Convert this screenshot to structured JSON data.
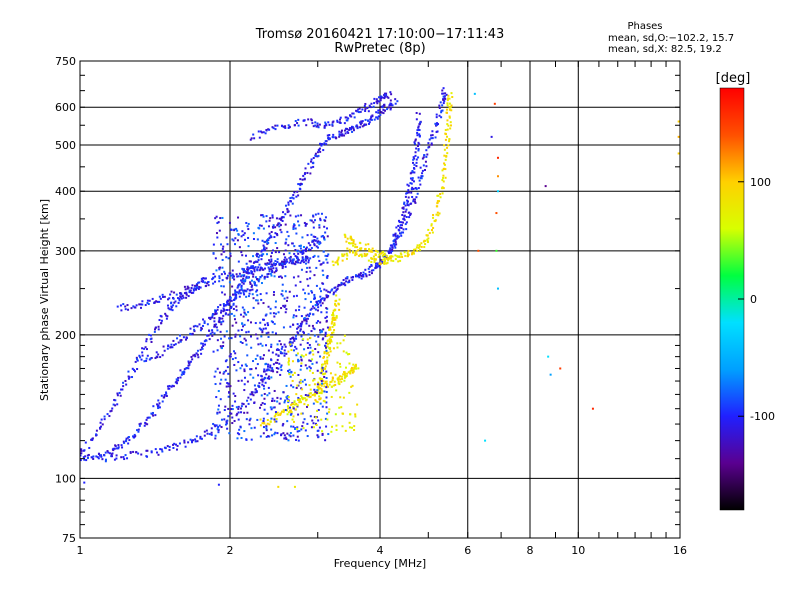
{
  "chart_data": {
    "type": "scatter",
    "title": "Tromsø 20160421 17:10:00−17:11:43",
    "subtitle": "RwPretec (8p)",
    "xlabel": "Frequency [MHz]",
    "ylabel": "Stationary phase Virtual Height [km]",
    "x_scale": "log",
    "y_scale": "log",
    "xlim": [
      1,
      16
    ],
    "ylim": [
      75,
      750
    ],
    "x_ticks": [
      1,
      2,
      4,
      6,
      8,
      10,
      16
    ],
    "y_ticks": [
      75,
      100,
      200,
      300,
      400,
      500,
      600,
      750
    ],
    "grid": true,
    "colorbar": {
      "label": "[deg]",
      "range": [
        -180,
        180
      ],
      "ticks": [
        100,
        0,
        -100
      ],
      "colors": [
        "#000000",
        "#5a0090",
        "#2020ff",
        "#00a0ff",
        "#00e0ff",
        "#00ff40",
        "#d8ff00",
        "#ffd000",
        "#ff5000",
        "#ff0000"
      ]
    },
    "stats": {
      "title": "Phases",
      "o_line": "mean, sd,O:−102.2, 15.7",
      "x_line": "mean, sd,X:  82.5, 19.2"
    },
    "series": [
      {
        "traces": [
          [
            [
              1.0,
              110
            ],
            [
              1.1,
              112
            ],
            [
              1.2,
              116
            ],
            [
              1.3,
              125
            ],
            [
              1.4,
              138
            ],
            [
              1.5,
              152
            ],
            [
              1.6,
              166
            ],
            [
              1.7,
              180
            ],
            [
              1.8,
              196
            ],
            [
              1.9,
              213
            ],
            [
              2.0,
              232
            ],
            [
              2.1,
              252
            ],
            [
              2.2,
              276
            ],
            [
              2.35,
              306
            ],
            [
              2.5,
              340
            ],
            [
              2.65,
              378
            ],
            [
              2.8,
              420
            ],
            [
              2.95,
              468
            ],
            [
              3.1,
              510
            ],
            [
              3.3,
              525
            ],
            [
              3.5,
              538
            ],
            [
              3.7,
              552
            ],
            [
              3.9,
              575
            ],
            [
              4.1,
              598
            ],
            [
              4.3,
              618
            ]
          ],
          [
            [
              1.1,
              110
            ],
            [
              1.3,
              112
            ],
            [
              1.5,
              115
            ],
            [
              1.7,
              120
            ],
            [
              1.9,
              128
            ],
            [
              2.1,
              140
            ],
            [
              2.3,
              158
            ],
            [
              2.5,
              178
            ],
            [
              2.7,
              200
            ],
            [
              2.9,
              222
            ],
            [
              3.1,
              240
            ],
            [
              3.3,
              254
            ],
            [
              3.5,
              262
            ],
            [
              3.7,
              268
            ],
            [
              3.9,
              276
            ],
            [
              4.1,
              290
            ],
            [
              4.3,
              310
            ],
            [
              4.5,
              345
            ],
            [
              4.7,
              395
            ],
            [
              4.9,
              450
            ],
            [
              5.1,
              520
            ],
            [
              5.3,
              600
            ],
            [
              5.4,
              650
            ]
          ],
          [
            [
              1.0,
              112
            ],
            [
              1.1,
              128
            ],
            [
              1.2,
              150
            ],
            [
              1.3,
              175
            ],
            [
              1.4,
              200
            ],
            [
              1.5,
              225
            ],
            [
              1.6,
              240
            ],
            [
              1.7,
              252
            ],
            [
              1.8,
              262
            ]
          ],
          [
            [
              1.2,
              228
            ],
            [
              1.35,
              232
            ],
            [
              1.5,
              240
            ],
            [
              1.7,
              252
            ],
            [
              1.9,
              262
            ],
            [
              2.1,
              270
            ],
            [
              2.3,
              276
            ],
            [
              2.5,
              282
            ],
            [
              2.7,
              286
            ],
            [
              2.9,
              290
            ]
          ],
          [
            [
              1.35,
              175
            ],
            [
              1.5,
              188
            ],
            [
              1.65,
              200
            ],
            [
              1.8,
              214
            ],
            [
              1.95,
              230
            ],
            [
              2.1,
              246
            ],
            [
              2.3,
              262
            ],
            [
              2.5,
              278
            ],
            [
              2.7,
              294
            ],
            [
              2.9,
              308
            ],
            [
              3.1,
              324
            ]
          ],
          [
            [
              2.2,
              520
            ],
            [
              2.5,
              545
            ],
            [
              2.8,
              560
            ],
            [
              3.1,
              552
            ],
            [
              3.4,
              565
            ],
            [
              3.7,
              590
            ],
            [
              4.0,
              625
            ],
            [
              4.2,
              640
            ]
          ],
          [
            [
              4.2,
              300
            ],
            [
              4.35,
              330
            ],
            [
              4.5,
              370
            ],
            [
              4.6,
              410
            ],
            [
              4.7,
              460
            ],
            [
              4.75,
              520
            ],
            [
              4.8,
              580
            ]
          ]
        ],
        "phase_deg": -105
      },
      {
        "traces": [
          [
            [
              2.3,
              130
            ],
            [
              2.5,
              135
            ],
            [
              2.7,
              142
            ],
            [
              2.9,
              150
            ],
            [
              3.1,
              156
            ],
            [
              3.3,
              162
            ],
            [
              3.5,
              168
            ],
            [
              3.6,
              172
            ]
          ],
          [
            [
              3.0,
              145
            ],
            [
              3.05,
              160
            ],
            [
              3.1,
              175
            ],
            [
              3.15,
              190
            ],
            [
              3.2,
              205
            ],
            [
              3.25,
              220
            ],
            [
              3.3,
              240
            ]
          ],
          [
            [
              3.2,
              280
            ],
            [
              3.5,
              300
            ],
            [
              3.8,
              290
            ],
            [
              4.1,
              285
            ],
            [
              4.4,
              290
            ],
            [
              4.7,
              300
            ],
            [
              5.0,
              320
            ],
            [
              5.2,
              360
            ],
            [
              5.35,
              420
            ],
            [
              5.45,
              500
            ],
            [
              5.5,
              580
            ],
            [
              5.55,
              640
            ]
          ],
          [
            [
              3.4,
              320
            ],
            [
              3.6,
              310
            ],
            [
              3.9,
              300
            ],
            [
              4.2,
              292
            ]
          ]
        ],
        "phase_deg": 85
      }
    ],
    "sparse_points": [
      {
        "x": 6.2,
        "y": 640,
        "phase_deg": -40
      },
      {
        "x": 6.8,
        "y": 610,
        "phase_deg": 150
      },
      {
        "x": 6.7,
        "y": 520,
        "phase_deg": -110
      },
      {
        "x": 6.9,
        "y": 470,
        "phase_deg": 160
      },
      {
        "x": 6.9,
        "y": 430,
        "phase_deg": 120
      },
      {
        "x": 6.9,
        "y": 400,
        "phase_deg": -30
      },
      {
        "x": 6.85,
        "y": 360,
        "phase_deg": 140
      },
      {
        "x": 6.85,
        "y": 300,
        "phase_deg": 30
      },
      {
        "x": 6.9,
        "y": 250,
        "phase_deg": -40
      },
      {
        "x": 6.3,
        "y": 300,
        "phase_deg": 140
      },
      {
        "x": 6.5,
        "y": 120,
        "phase_deg": -20
      },
      {
        "x": 8.6,
        "y": 410,
        "phase_deg": -140
      },
      {
        "x": 8.7,
        "y": 180,
        "phase_deg": -20
      },
      {
        "x": 8.8,
        "y": 165,
        "phase_deg": -60
      },
      {
        "x": 9.2,
        "y": 170,
        "phase_deg": 150
      },
      {
        "x": 10.7,
        "y": 140,
        "phase_deg": 160
      },
      {
        "x": 15.9,
        "y": 560,
        "phase_deg": 100
      },
      {
        "x": 15.9,
        "y": 520,
        "phase_deg": 110
      },
      {
        "x": 15.9,
        "y": 480,
        "phase_deg": 100
      },
      {
        "x": 2.5,
        "y": 96,
        "phase_deg": 90
      },
      {
        "x": 2.7,
        "y": 96,
        "phase_deg": 80
      },
      {
        "x": 1.9,
        "y": 97,
        "phase_deg": -100
      },
      {
        "x": 1.02,
        "y": 98,
        "phase_deg": -100
      }
    ]
  }
}
